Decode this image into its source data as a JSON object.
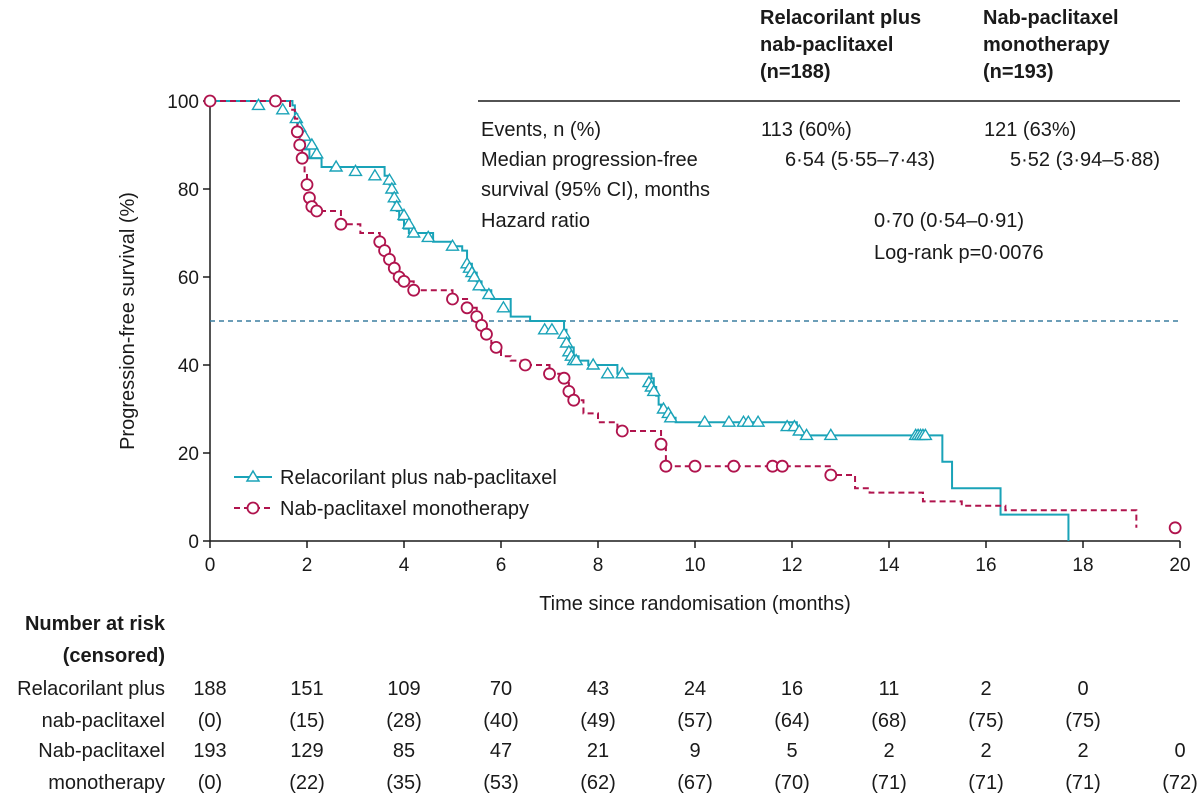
{
  "colors": {
    "series_a": "#1aa3b8",
    "series_b": "#b0134d",
    "median_line": "#3b7ea1",
    "text": "#1a1a1a"
  },
  "chart_data": {
    "type": "line",
    "step": true,
    "xlabel": "Time since randomisation (months)",
    "ylabel": "Progression-free survival (%)",
    "xlim": [
      0,
      20
    ],
    "ylim": [
      0,
      100
    ],
    "xticks": [
      0,
      2,
      4,
      6,
      8,
      10,
      12,
      14,
      16,
      18,
      20
    ],
    "yticks": [
      0,
      20,
      40,
      60,
      80,
      100
    ],
    "reference_line_y": 50,
    "legend_position": "lower-left",
    "series": [
      {
        "name": "Relacorilant plus nab-paclitaxel",
        "key": "a",
        "marker": "triangle",
        "line_style": "solid",
        "x": [
          0,
          1.7,
          1.75,
          1.8,
          1.85,
          1.9,
          1.95,
          2.05,
          2.3,
          2.8,
          3.5,
          3.6,
          3.7,
          3.75,
          3.8,
          3.85,
          3.9,
          4.0,
          4.1,
          4.2,
          4.3,
          4.6,
          5.0,
          5.2,
          5.3,
          5.4,
          5.5,
          5.6,
          5.8,
          6.2,
          6.6,
          7.3,
          7.35,
          7.4,
          7.5,
          7.6,
          7.8,
          8.4,
          9.1,
          9.15,
          9.2,
          9.25,
          9.3,
          9.4,
          9.5,
          9.6,
          9.9,
          12.0,
          12.1,
          12.2,
          12.3,
          12.4,
          14.8,
          15.1,
          15.3,
          16.3,
          17.7
        ],
        "y": [
          100,
          99,
          97,
          95,
          93,
          91,
          89,
          87,
          85,
          85,
          85,
          83,
          81,
          79,
          77,
          75,
          73,
          71,
          70,
          70,
          70,
          68,
          67,
          66,
          63,
          61,
          59,
          57,
          55,
          51,
          50,
          48,
          46,
          44,
          42,
          41,
          40,
          38,
          37,
          35,
          33,
          31,
          30,
          29,
          28,
          27,
          27,
          27,
          25,
          24,
          24,
          24,
          24,
          18,
          12,
          6,
          0
        ],
        "censor_x": [
          1.0,
          1.5,
          1.78,
          1.85,
          1.95,
          2.1,
          2.2,
          2.6,
          3.0,
          3.4,
          3.7,
          3.75,
          3.8,
          3.85,
          4.0,
          4.1,
          4.2,
          4.5,
          5.0,
          5.3,
          5.35,
          5.4,
          5.45,
          5.55,
          5.75,
          6.05,
          6.9,
          7.05,
          7.3,
          7.35,
          7.4,
          7.45,
          7.5,
          7.55,
          7.9,
          8.2,
          8.5,
          9.05,
          9.1,
          9.15,
          9.35,
          9.45,
          9.5,
          10.2,
          10.7,
          11.0,
          11.1,
          11.3,
          11.9,
          12.05,
          12.15,
          12.3,
          12.8,
          14.55,
          14.6,
          14.65,
          14.7,
          14.75
        ],
        "censor_y": [
          99,
          98,
          96,
          94,
          92,
          90,
          88,
          85,
          84,
          83,
          82,
          80,
          78,
          76,
          74,
          72,
          70,
          69,
          67,
          63,
          62,
          61,
          60,
          58,
          56,
          53,
          48,
          48,
          47,
          45,
          43,
          42,
          41,
          41,
          40,
          38,
          38,
          36,
          35,
          34,
          30,
          29,
          28,
          27,
          27,
          27,
          27,
          27,
          26,
          26,
          25,
          24,
          24,
          24,
          24,
          24,
          24,
          24
        ]
      },
      {
        "name": "Nab-paclitaxel monotherapy",
        "key": "b",
        "marker": "circle",
        "line_style": "dashed",
        "x": [
          0,
          1.65,
          1.75,
          1.8,
          1.85,
          1.9,
          1.95,
          2.0,
          2.05,
          2.1,
          2.2,
          2.7,
          3.1,
          3.5,
          3.6,
          3.7,
          3.8,
          3.9,
          4.0,
          4.2,
          5.0,
          5.3,
          5.5,
          5.6,
          5.7,
          5.8,
          5.9,
          6.0,
          6.2,
          6.5,
          7.0,
          7.3,
          7.4,
          7.5,
          7.7,
          8.0,
          8.4,
          9.3,
          9.4,
          12.8,
          13.3,
          13.6,
          14.7,
          15.5,
          16.4,
          18.0,
          19.1
        ],
        "y": [
          100,
          98,
          96,
          93,
          90,
          87,
          84,
          81,
          78,
          76,
          75,
          72,
          70,
          68,
          66,
          64,
          62,
          60,
          59,
          57,
          55,
          53,
          51,
          49,
          47,
          45,
          44,
          42,
          41,
          40,
          38,
          37,
          34,
          32,
          29,
          27,
          25,
          22,
          17,
          15,
          12,
          11,
          9,
          8,
          7,
          7,
          3
        ]
      }
    ]
  },
  "stats_table": {
    "col_a_header": [
      "Relacorilant plus",
      "nab-paclitaxel",
      "(n=188)"
    ],
    "col_b_header": [
      "Nab-paclitaxel",
      "monotherapy",
      "(n=193)"
    ],
    "events_label": "Events, n (%)",
    "events_a": "113 (60%)",
    "events_b": "121 (63%)",
    "median_label_1": "Median progression-free",
    "median_label_2": "survival (95% CI), months",
    "median_a": "6·54 (5·55–7·43)",
    "median_b": "5·52 (3·94–5·88)",
    "hr_label": "Hazard ratio",
    "hr_value": "0·70 (0·54–0·91)",
    "logrank": "Log-rank p=0·0076"
  },
  "risk_table": {
    "title_1": "Number at risk",
    "title_2": "(censored)",
    "rows": [
      {
        "label_1": "Relacorilant plus",
        "label_2": "nab-paclitaxel",
        "at_risk": [
          "188",
          "151",
          "109",
          "70",
          "43",
          "24",
          "16",
          "11",
          "2",
          "0",
          ""
        ],
        "censored": [
          "(0)",
          "(15)",
          "(28)",
          "(40)",
          "(49)",
          "(57)",
          "(64)",
          "(68)",
          "(75)",
          "(75)",
          ""
        ]
      },
      {
        "label_1": "Nab-paclitaxel",
        "label_2": "monotherapy",
        "at_risk": [
          "193",
          "129",
          "85",
          "47",
          "21",
          "9",
          "5",
          "2",
          "2",
          "2",
          "0"
        ],
        "censored": [
          "(0)",
          "(22)",
          "(35)",
          "(53)",
          "(62)",
          "(67)",
          "(70)",
          "(71)",
          "(71)",
          "(71)",
          "(72)"
        ]
      }
    ]
  }
}
